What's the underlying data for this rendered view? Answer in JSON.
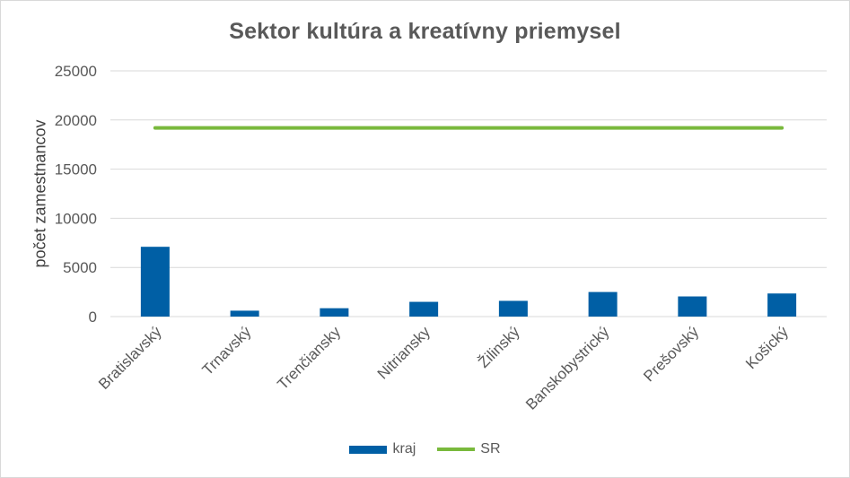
{
  "chart_data": {
    "type": "bar",
    "title": "Sektor kultúra a kreatívny priemysel",
    "xlabel": "",
    "ylabel": "počet zamestnancov",
    "categories": [
      "Bratislavský",
      "Trnavský",
      "Trenčiansky",
      "Nitriansky",
      "Žilinský",
      "Banskobystrický",
      "Prešovský",
      "Košický"
    ],
    "y_ticks": [
      "0",
      "5000",
      "10000",
      "15000",
      "20000",
      "25000"
    ],
    "ylim": [
      0,
      25000
    ],
    "grid": true,
    "legend_position": "bottom",
    "series": [
      {
        "name": "kraj",
        "type": "bar",
        "color": "#005fa5",
        "values": [
          7100,
          600,
          850,
          1500,
          1600,
          2500,
          2050,
          2350
        ]
      },
      {
        "name": "SR",
        "type": "line",
        "color": "#79b93c",
        "values": [
          19200,
          19200,
          19200,
          19200,
          19200,
          19200,
          19200,
          19200
        ]
      }
    ]
  }
}
